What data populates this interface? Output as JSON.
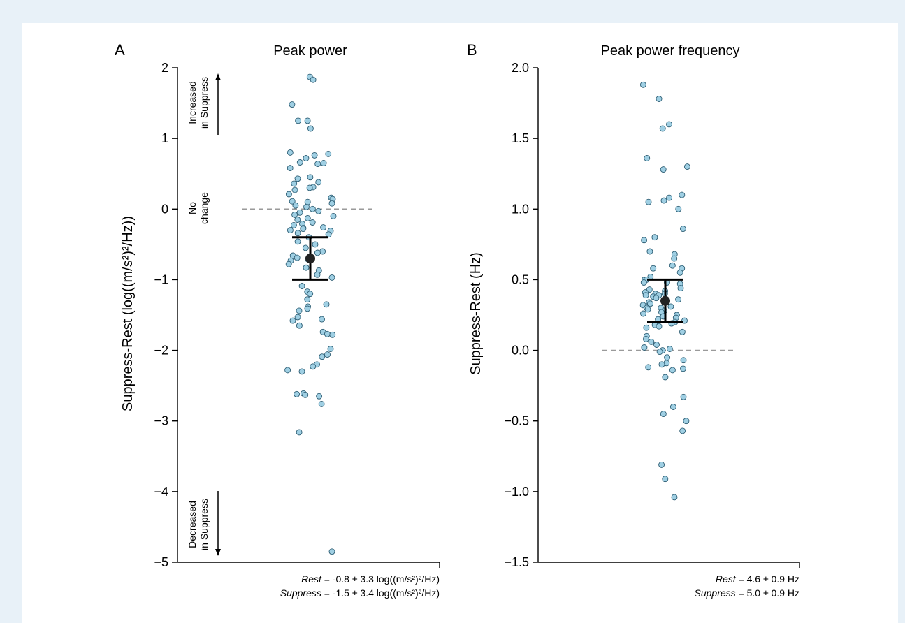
{
  "chart_data": [
    {
      "type": "scatter",
      "panel_label": "A",
      "title": "Peak power",
      "ylabel": "Suppress-Rest (log((m/s²)²/Hz))",
      "ylim": [
        -5,
        2
      ],
      "yticks": [
        -5,
        -4,
        -3,
        -2,
        -1,
        0,
        1,
        2
      ],
      "ytick_labels": [
        "−5",
        "−4",
        "−3",
        "−2",
        "−1",
        "0",
        "1",
        "2"
      ],
      "reference_line": 0,
      "mean": -0.7,
      "ci": [
        -1.0,
        -0.4
      ],
      "annotations": {
        "increased": [
          "Increased",
          "in Suppress"
        ],
        "no_change": [
          "No",
          "change"
        ],
        "decreased": [
          "Decreased",
          "in Suppress"
        ]
      },
      "summary": {
        "rest_label": "Rest",
        "rest_text": " = -0.8 ± 3.3 log((m/s²)²/Hz)",
        "suppress_label": "Suppress",
        "suppress_text": " = -1.5 ± 3.4 log((m/s²)²/Hz)"
      },
      "values": [
        1.87,
        1.83,
        1.48,
        1.25,
        1.25,
        1.14,
        0.8,
        0.78,
        0.76,
        0.72,
        0.66,
        0.65,
        0.64,
        0.58,
        0.45,
        0.43,
        0.38,
        0.36,
        0.31,
        0.3,
        0.27,
        0.21,
        0.16,
        0.14,
        0.11,
        0.1,
        0.08,
        0.05,
        0.03,
        0.0,
        -0.03,
        -0.05,
        -0.08,
        -0.1,
        -0.13,
        -0.15,
        -0.19,
        -0.21,
        -0.23,
        -0.26,
        -0.27,
        -0.28,
        -0.3,
        -0.31,
        -0.34,
        -0.36,
        -0.4,
        -0.46,
        -0.5,
        -0.55,
        -0.6,
        -0.62,
        -0.66,
        -0.69,
        -0.71,
        -0.73,
        -0.78,
        -0.83,
        -0.87,
        -0.93,
        -0.97,
        -1.09,
        -1.17,
        -1.2,
        -1.28,
        -1.35,
        -1.38,
        -1.41,
        -1.44,
        -1.53,
        -1.56,
        -1.58,
        -1.65,
        -1.74,
        -1.77,
        -1.78,
        -1.98,
        -2.06,
        -2.09,
        -2.2,
        -2.23,
        -2.28,
        -2.3,
        -2.61,
        -2.62,
        -2.63,
        -2.65,
        -2.76,
        -3.16,
        -4.85
      ]
    },
    {
      "type": "scatter",
      "panel_label": "B",
      "title": "Peak power frequency",
      "ylabel": "Suppress-Rest (Hz)",
      "ylim": [
        -1.5,
        2.0
      ],
      "yticks": [
        -1.5,
        -1.0,
        -0.5,
        0.0,
        0.5,
        1.0,
        1.5,
        2.0
      ],
      "ytick_labels": [
        "−1.5",
        "−1.0",
        "−0.5",
        "0.0",
        "0.5",
        "1.0",
        "1.5",
        "2.0"
      ],
      "reference_line": 0,
      "mean": 0.35,
      "ci": [
        0.2,
        0.5
      ],
      "summary": {
        "rest_label": "Rest",
        "rest_text": " = 4.6 ± 0.9 Hz",
        "suppress_label": "Suppress",
        "suppress_text": " = 5.0 ± 0.9 Hz"
      },
      "values": [
        1.88,
        1.78,
        1.6,
        1.57,
        1.36,
        1.3,
        1.28,
        1.1,
        1.08,
        1.06,
        1.05,
        1.0,
        0.86,
        0.8,
        0.78,
        0.7,
        0.68,
        0.65,
        0.6,
        0.58,
        0.58,
        0.55,
        0.52,
        0.5,
        0.5,
        0.48,
        0.48,
        0.47,
        0.44,
        0.43,
        0.42,
        0.41,
        0.4,
        0.4,
        0.39,
        0.39,
        0.38,
        0.37,
        0.36,
        0.34,
        0.33,
        0.32,
        0.31,
        0.3,
        0.3,
        0.29,
        0.28,
        0.27,
        0.26,
        0.25,
        0.24,
        0.23,
        0.22,
        0.21,
        0.2,
        0.19,
        0.18,
        0.17,
        0.16,
        0.13,
        0.1,
        0.08,
        0.06,
        0.04,
        0.02,
        0.01,
        0.0,
        -0.01,
        -0.05,
        -0.07,
        -0.09,
        -0.1,
        -0.12,
        -0.13,
        -0.14,
        -0.19,
        -0.33,
        -0.4,
        -0.45,
        -0.5,
        -0.57,
        -0.81,
        -0.91,
        -1.04
      ]
    }
  ]
}
